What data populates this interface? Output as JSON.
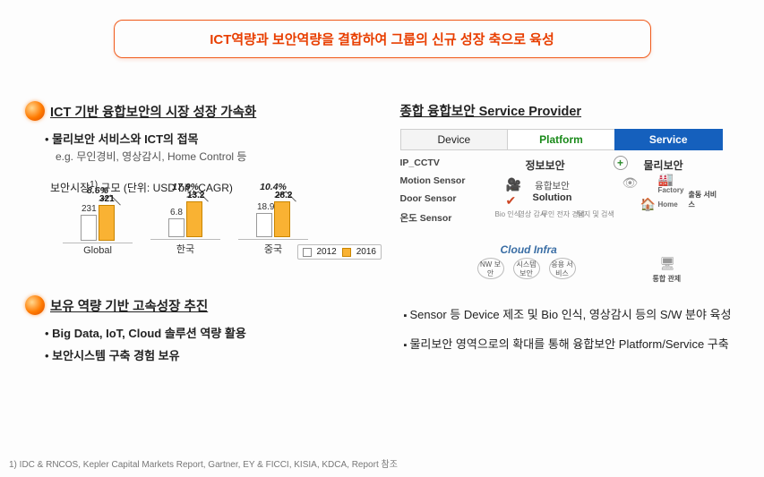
{
  "title": "ICT역량과 보안역량을 결합하여 그룹의 신규 성장 축으로 육성",
  "left": {
    "sect1_title": "ICT 기반 융합보안의 시장 성장 가속화",
    "sect1_bullet": "물리보안 서비스와 ICT의 접목",
    "sect1_eg": "e.g. 무인경비, 영상감시, Home Control 등",
    "chart_caption_prefix": "보안시장",
    "chart_caption_sup": "1)",
    "chart_caption_rest": " 규모 (단위: USD bil., CAGR)",
    "sect2_title": "보유 역량 기반 고속성장 추진",
    "sect2_b1": "Big Data, IoT, Cloud 솔루션 역량 활용",
    "sect2_b2": "보안시스템 구축 경험 보유"
  },
  "chart": {
    "legend_a": "2012",
    "legend_b": "2016",
    "bar_color_a": "#ffffff",
    "bar_color_b": "#f9b233",
    "max": 321,
    "groups": [
      {
        "label": "Global",
        "a": 231,
        "b": 321,
        "cagr": "8.6%",
        "a_txt": "231",
        "b_txt": "321"
      },
      {
        "label": "한국",
        "a": 6.8,
        "b": 13.2,
        "cagr": "17.9%",
        "a_txt": "6.8",
        "b_txt": "13.2"
      },
      {
        "label": "중국",
        "a": 18.9,
        "b": 28.2,
        "cagr": "10.4%",
        "a_txt": "18.9",
        "b_txt": "28.2"
      }
    ]
  },
  "right": {
    "title": "종합 융합보안 Service Provider",
    "tab_device": "Device",
    "tab_platform": "Platform",
    "tab_service": "Service",
    "dv1": "IP_CCTV",
    "dv2": "Motion Sensor",
    "dv3": "Door Sensor",
    "dv4": "온도 Sensor",
    "info_sec": "정보보안",
    "phys_sec": "물리보안",
    "sol1": "융합보안",
    "sol2": "Solution",
    "cloud": "Cloud Infra",
    "ring1": "NW\n보안",
    "ring2": "시스템\n보안",
    "ring3": "응용\n서비스",
    "m_bio": "Bio\n인식",
    "m_vid": "영상\n감시",
    "m_un": "무인 전자\n경비",
    "m_det": "탐지 및\n검색",
    "factory": "Factory",
    "home": "Home",
    "dispatch": "출동\n서비스",
    "monitor": "통합 관제",
    "bullet1": "Sensor 등 Device 제조 및 Bio 인식, 영상감시 등의 S/W 분야 육성",
    "bullet2": "물리보안 영역으로의 확대를 통해 융합보안 Platform/Service 구축"
  },
  "footnote": "1) IDC & RNCOS, Kepler Capital Markets Report, Gartner, EY & FICCI, KISIA, KDCA, Report 참조"
}
